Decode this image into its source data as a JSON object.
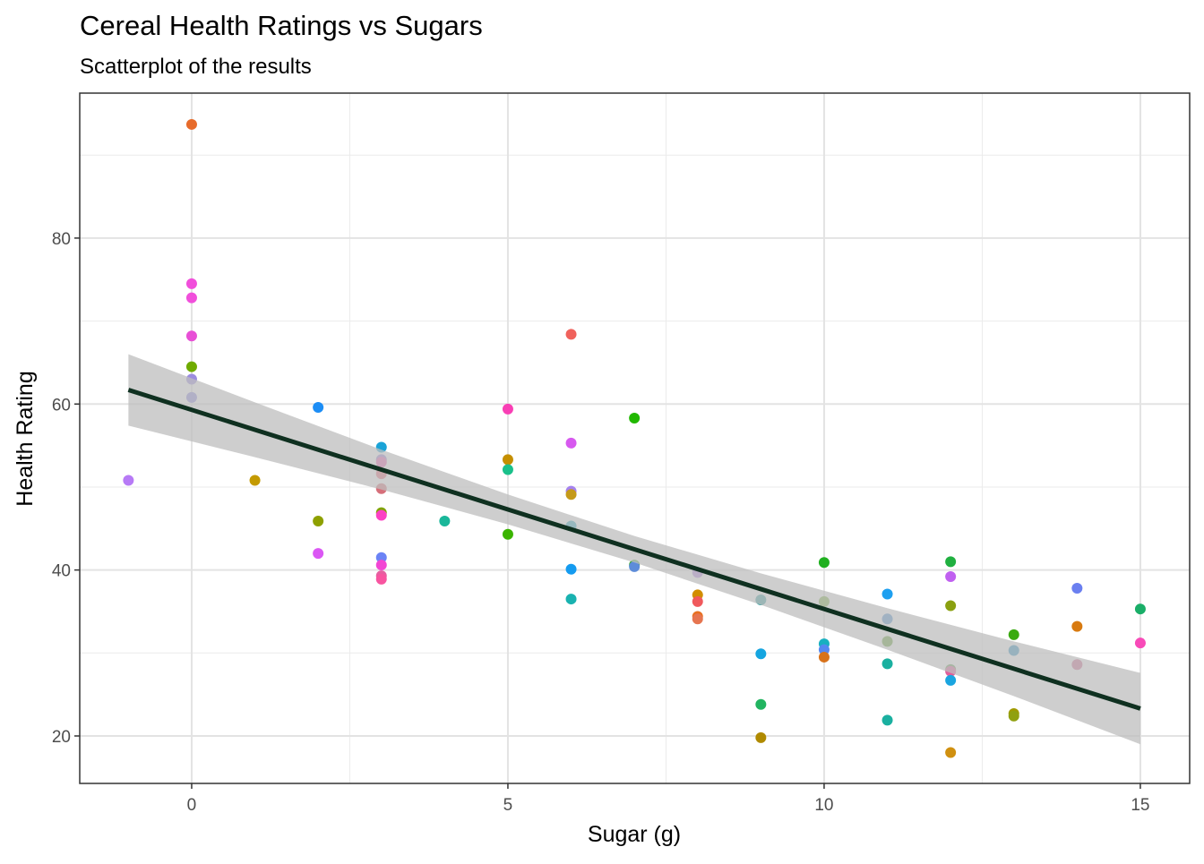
{
  "chart_data": {
    "type": "scatter",
    "title": "Cereal Health Ratings vs Sugars",
    "subtitle": "Scatterplot of the results",
    "x_label": "Sugar (g)",
    "y_label": "Health Rating",
    "xlim": [
      -1.77,
      15.78
    ],
    "ylim": [
      14.28,
      97.47
    ],
    "xticks": [
      0,
      5,
      10,
      15
    ],
    "yticks": [
      20,
      40,
      60,
      80
    ],
    "x_minor_grid": [
      2.5,
      7.5,
      12.5
    ],
    "y_minor_grid": [
      30,
      50,
      70,
      90
    ],
    "grid": true,
    "points": {
      "x": [
        0,
        0,
        0,
        0,
        0,
        0,
        0,
        -1,
        1,
        2,
        2,
        2,
        3,
        3,
        3,
        3,
        3,
        3,
        3,
        3,
        3,
        3,
        3,
        4,
        5,
        5,
        5,
        5,
        6,
        6,
        6,
        6,
        6,
        6,
        6,
        7,
        7,
        7,
        8,
        8,
        8,
        8,
        8,
        9,
        9,
        9,
        9,
        10,
        10,
        10,
        10,
        10,
        11,
        11,
        11,
        11,
        11,
        12,
        12,
        12,
        12,
        12,
        12,
        12,
        13,
        13,
        13,
        13,
        14,
        14,
        14,
        15,
        15
      ],
      "y": [
        93.7,
        74.5,
        72.8,
        68.2,
        64.5,
        63.0,
        60.8,
        50.8,
        50.8,
        59.6,
        45.9,
        42.0,
        54.8,
        53.3,
        53.0,
        51.6,
        49.8,
        46.9,
        46.6,
        41.5,
        40.6,
        39.3,
        38.9,
        45.9,
        59.4,
        53.3,
        52.1,
        44.3,
        68.4,
        55.3,
        49.5,
        49.1,
        45.3,
        40.1,
        36.5,
        58.3,
        40.6,
        40.4,
        39.7,
        37.0,
        36.2,
        34.4,
        34.1,
        36.4,
        29.9,
        23.8,
        19.8,
        40.9,
        36.2,
        31.1,
        30.4,
        29.5,
        37.1,
        34.1,
        31.4,
        28.7,
        21.9,
        41.0,
        39.2,
        35.7,
        28.0,
        27.8,
        26.7,
        18.0,
        32.2,
        30.3,
        22.7,
        22.4,
        37.8,
        33.2,
        28.6,
        35.3,
        31.2
      ],
      "colors": [
        "#e76b2b",
        "#f14fdb",
        "#f14fdb",
        "#e84fd6",
        "#6fab00",
        "#9c8ce0",
        "#8d87dd",
        "#b77af6",
        "#c49a00",
        "#1c8df5",
        "#8ea000",
        "#db57f4",
        "#1aa3d7",
        "#9c81d2",
        "#ee5cb0",
        "#e96a7a",
        "#d66f7a",
        "#7fa300",
        "#fc41c4",
        "#6b83f5",
        "#f246d4",
        "#e65fa0",
        "#f854a0",
        "#1ab79a",
        "#f93fb5",
        "#c58f00",
        "#1ac08a",
        "#3bb400",
        "#f0625c",
        "#d759ef",
        "#a582ee",
        "#c59a1a",
        "#25a8c0",
        "#149bf0",
        "#19b2b0",
        "#21b800",
        "#3aa930",
        "#5d8cd9",
        "#b080e0",
        "#d18d00",
        "#f0595c",
        "#e87020",
        "#e67550",
        "#3aa1a0",
        "#15a5e0",
        "#22b460",
        "#b08a00",
        "#20b020",
        "#7caf40",
        "#18b0c0",
        "#5587f0",
        "#d8721a",
        "#1ea0f0",
        "#4b8fcf",
        "#60a030",
        "#1ab0a0",
        "#1ab0a0",
        "#20b040",
        "#c060f0",
        "#8aa010",
        "#62a050",
        "#e0609a",
        "#1aa5e0",
        "#d09010",
        "#3aaa10",
        "#2990c0",
        "#a09a00",
        "#90a010",
        "#6a7ff0",
        "#d87a10",
        "#d06890",
        "#1aae68",
        "#f84ab8"
      ]
    },
    "fit": {
      "color": "#0f3020",
      "band_color": "#bdbdbd",
      "x": [
        -1,
        1,
        3,
        5,
        7,
        9,
        11,
        13,
        15
      ],
      "y": [
        61.7,
        56.9,
        52.1,
        47.3,
        42.5,
        37.7,
        32.9,
        28.1,
        23.3
      ],
      "lower": [
        57.4,
        53.6,
        49.7,
        45.5,
        40.9,
        35.8,
        30.4,
        24.8,
        19.0
      ],
      "upper": [
        66.0,
        60.2,
        54.5,
        49.1,
        44.1,
        39.6,
        35.4,
        31.4,
        27.6
      ]
    }
  }
}
